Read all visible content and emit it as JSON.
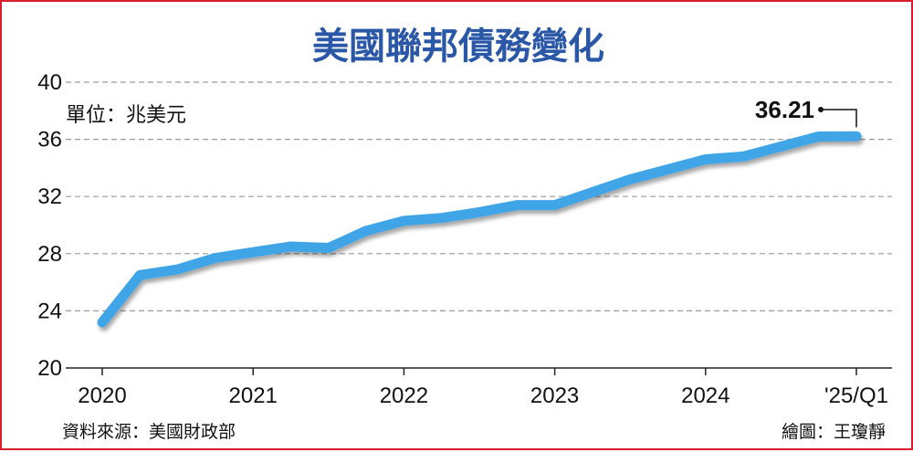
{
  "chart_data": {
    "type": "line",
    "title": "美國聯邦債務變化",
    "unit_label": "單位：兆美元",
    "source": "資料來源：美國財政部",
    "credit": "繪圖：王瓊靜",
    "ylim": [
      20,
      40
    ],
    "yticks": [
      "20",
      "24",
      "28",
      "32",
      "36",
      "40"
    ],
    "xticks": [
      "2020",
      "2021",
      "2022",
      "2023",
      "2024",
      "'25/Q1"
    ],
    "grid": true,
    "line_color": "#3fa5e6",
    "series": [
      {
        "x": [
          "2020Q1",
          "2020Q2",
          "2020Q3",
          "2020Q4",
          "2021Q1",
          "2021Q2",
          "2021Q3",
          "2021Q4",
          "2022Q1",
          "2022Q2",
          "2022Q3",
          "2022Q4",
          "2023Q1",
          "2023Q2",
          "2023Q3",
          "2023Q4",
          "2024Q1",
          "2024Q2",
          "2024Q3",
          "2024Q4",
          "2025Q1"
        ],
        "values": [
          23.2,
          26.5,
          26.9,
          27.7,
          28.1,
          28.5,
          28.4,
          29.6,
          30.3,
          30.5,
          30.9,
          31.4,
          31.4,
          32.3,
          33.2,
          33.9,
          34.6,
          34.8,
          35.5,
          36.2,
          36.21
        ]
      }
    ],
    "annotation": {
      "text": "36.21",
      "value": 36.21
    }
  }
}
